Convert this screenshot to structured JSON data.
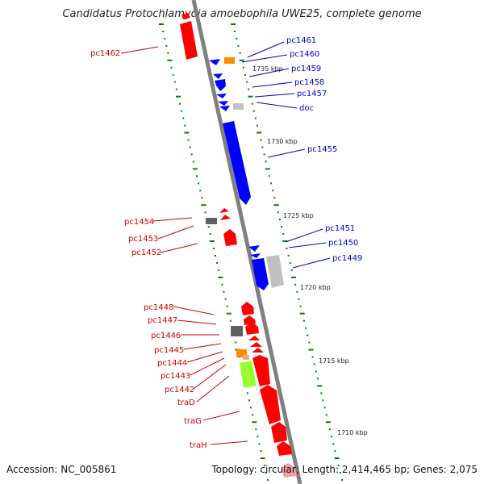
{
  "title": "Candidatus Protochlamydia amoebophila UWE25, complete genome",
  "accession": "Accession: NC_005861",
  "topology": "Topology: circular; Length: 2,414,465 bp; Genes: 2,075",
  "colors": {
    "forward": "#ff0000",
    "reverse": "#0000ff",
    "backbone": "#808080",
    "tick": "#008000",
    "orange": "#ff8c00",
    "lime": "#99ff33",
    "dark_gray": "#606060",
    "light_gray": "#c0c0c0"
  },
  "kbp_marks": [
    {
      "label": "1735 kbp"
    },
    {
      "label": "1730 kbp"
    },
    {
      "label": "1725 kbp"
    },
    {
      "label": "1720 kbp"
    },
    {
      "label": "1715 kbp"
    },
    {
      "label": "1710 kbp"
    }
  ],
  "left_labels": [
    {
      "name": "pc1462"
    },
    {
      "name": "pc1454"
    },
    {
      "name": "pc1453"
    },
    {
      "name": "pc1452"
    },
    {
      "name": "pc1448"
    },
    {
      "name": "pc1447"
    },
    {
      "name": "pc1446"
    },
    {
      "name": "pc1445"
    },
    {
      "name": "pc1444"
    },
    {
      "name": "pc1443"
    },
    {
      "name": "pc1442"
    },
    {
      "name": "traD"
    },
    {
      "name": "traG"
    },
    {
      "name": "traH"
    }
  ],
  "right_labels": [
    {
      "name": "pc1461"
    },
    {
      "name": "pc1460"
    },
    {
      "name": "pc1459"
    },
    {
      "name": "pc1458"
    },
    {
      "name": "pc1457"
    },
    {
      "name": "doc"
    },
    {
      "name": "pc1455"
    },
    {
      "name": "pc1451"
    },
    {
      "name": "pc1450"
    },
    {
      "name": "pc1449"
    }
  ]
}
